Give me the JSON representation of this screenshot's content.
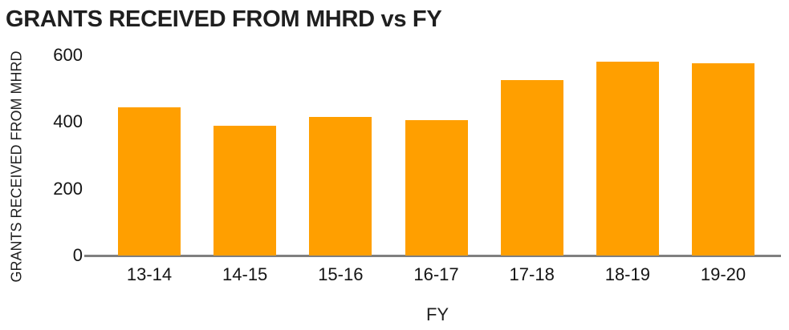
{
  "title": "GRANTS RECEIVED FROM MHRD vs FY",
  "colors": {
    "bar": "#ff9f00",
    "axis_line": "#7f7f7f",
    "text": "#1f1f1f"
  },
  "chart_data": {
    "type": "bar",
    "title": "GRANTS RECEIVED FROM MHRD vs FY",
    "categories": [
      "13-14",
      "14-15",
      "15-16",
      "16-17",
      "17-18",
      "18-19",
      "19-20"
    ],
    "values": [
      445,
      390,
      415,
      405,
      525,
      580,
      575
    ],
    "xlabel": "FY",
    "ylabel": "GRANTS RECEIVED FROM MHRD",
    "ylim": [
      0,
      600
    ],
    "yticks": [
      0,
      200,
      400,
      600
    ],
    "grid": false,
    "legend_position": "none",
    "bar_color": "#ff9f00"
  }
}
